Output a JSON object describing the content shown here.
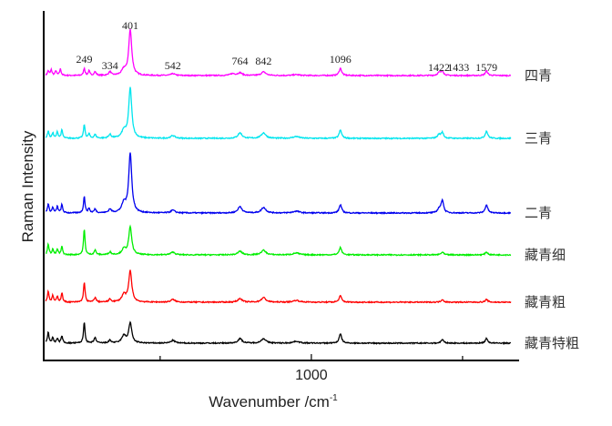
{
  "chart_data": {
    "type": "line",
    "title": "",
    "xlabel": "Wavenumber /cm",
    "xlabel_superscript": "-1",
    "ylabel": "Raman Intensity",
    "xlim": [
      115,
      1687
    ],
    "ylim": [
      0,
      384
    ],
    "x_ticks": [
      500,
      1000,
      1500
    ],
    "x_tick_labels": [
      "",
      "1000",
      ""
    ],
    "grid": false,
    "peak_labels": [
      {
        "x": 249,
        "text": "249",
        "y": 327
      },
      {
        "x": 334,
        "text": "334",
        "y": 320
      },
      {
        "x": 401,
        "text": "401",
        "y": 364
      },
      {
        "x": 542,
        "text": "542",
        "y": 320
      },
      {
        "x": 764,
        "text": "764",
        "y": 325
      },
      {
        "x": 842,
        "text": "842",
        "y": 325
      },
      {
        "x": 1096,
        "text": "1096",
        "y": 327
      },
      {
        "x": 1422,
        "text": "1422",
        "y": 318
      },
      {
        "x": 1486,
        "text": "1433",
        "y": 318
      },
      {
        "x": 1579,
        "text": "1579",
        "y": 318
      }
    ],
    "series": [
      {
        "name": "四青",
        "color": "#ff00ff",
        "offset": 313,
        "peaks": [
          [
            130,
            5,
            3
          ],
          [
            140,
            6,
            3
          ],
          [
            155,
            5,
            3
          ],
          [
            170,
            7,
            3
          ],
          [
            249,
            8,
            3
          ],
          [
            265,
            5,
            3
          ],
          [
            285,
            4,
            4
          ],
          [
            334,
            4,
            5
          ],
          [
            380,
            6,
            8
          ],
          [
            401,
            50,
            6
          ],
          [
            542,
            2,
            8
          ],
          [
            740,
            2,
            10
          ],
          [
            764,
            3,
            8
          ],
          [
            842,
            4,
            9
          ],
          [
            950,
            1,
            12
          ],
          [
            1096,
            8,
            5
          ],
          [
            1422,
            3,
            6
          ],
          [
            1433,
            5,
            5
          ],
          [
            1579,
            5,
            5
          ]
        ]
      },
      {
        "name": "三青",
        "color": "#00e5ee",
        "offset": 244,
        "peaks": [
          [
            130,
            8,
            3
          ],
          [
            145,
            6,
            3
          ],
          [
            160,
            7,
            3
          ],
          [
            175,
            9,
            3
          ],
          [
            249,
            15,
            3
          ],
          [
            265,
            5,
            3
          ],
          [
            285,
            4,
            4
          ],
          [
            334,
            4,
            5
          ],
          [
            380,
            8,
            8
          ],
          [
            401,
            55,
            6
          ],
          [
            542,
            3,
            8
          ],
          [
            764,
            6,
            8
          ],
          [
            842,
            6,
            9
          ],
          [
            950,
            2,
            12
          ],
          [
            1096,
            9,
            5
          ],
          [
            1422,
            4,
            6
          ],
          [
            1433,
            6,
            5
          ],
          [
            1579,
            8,
            5
          ]
        ]
      },
      {
        "name": "二青",
        "color": "#0000ee",
        "offset": 162,
        "peaks": [
          [
            130,
            10,
            3
          ],
          [
            145,
            6,
            3
          ],
          [
            160,
            7,
            3
          ],
          [
            175,
            9,
            3
          ],
          [
            249,
            18,
            3
          ],
          [
            265,
            5,
            3
          ],
          [
            285,
            4,
            4
          ],
          [
            334,
            4,
            5
          ],
          [
            380,
            10,
            8
          ],
          [
            401,
            65,
            6
          ],
          [
            542,
            3,
            8
          ],
          [
            764,
            7,
            8
          ],
          [
            842,
            6,
            9
          ],
          [
            950,
            2,
            12
          ],
          [
            1096,
            9,
            5
          ],
          [
            1422,
            4,
            6
          ],
          [
            1433,
            14,
            5
          ],
          [
            1579,
            9,
            5
          ]
        ]
      },
      {
        "name": "藏青细",
        "color": "#00ee00",
        "offset": 116,
        "peaks": [
          [
            130,
            12,
            3
          ],
          [
            145,
            6,
            3
          ],
          [
            160,
            6,
            3
          ],
          [
            175,
            9,
            3
          ],
          [
            249,
            28,
            3
          ],
          [
            285,
            5,
            4
          ],
          [
            334,
            3,
            5
          ],
          [
            380,
            6,
            8
          ],
          [
            401,
            30,
            6
          ],
          [
            542,
            3,
            8
          ],
          [
            764,
            4,
            8
          ],
          [
            842,
            5,
            9
          ],
          [
            950,
            2,
            12
          ],
          [
            1096,
            8,
            5
          ],
          [
            1433,
            3,
            5
          ],
          [
            1579,
            3,
            5
          ]
        ]
      },
      {
        "name": "藏青粗",
        "color": "#ff0000",
        "offset": 64,
        "peaks": [
          [
            130,
            12,
            3
          ],
          [
            145,
            7,
            3
          ],
          [
            160,
            6,
            3
          ],
          [
            175,
            10,
            3
          ],
          [
            249,
            22,
            3
          ],
          [
            285,
            5,
            4
          ],
          [
            334,
            3,
            5
          ],
          [
            380,
            8,
            8
          ],
          [
            401,
            34,
            6
          ],
          [
            542,
            3,
            8
          ],
          [
            764,
            4,
            8
          ],
          [
            842,
            5,
            9
          ],
          [
            950,
            2,
            12
          ],
          [
            1096,
            7,
            5
          ],
          [
            1433,
            3,
            5
          ],
          [
            1579,
            3,
            5
          ]
        ]
      },
      {
        "name": "藏青特粗",
        "color": "#000000",
        "offset": 19,
        "peaks": [
          [
            130,
            12,
            3
          ],
          [
            145,
            6,
            3
          ],
          [
            160,
            5,
            3
          ],
          [
            175,
            8,
            3
          ],
          [
            249,
            23,
            3
          ],
          [
            285,
            6,
            4
          ],
          [
            334,
            3,
            5
          ],
          [
            380,
            8,
            8
          ],
          [
            401,
            22,
            6
          ],
          [
            542,
            3,
            8
          ],
          [
            764,
            5,
            8
          ],
          [
            842,
            5,
            9
          ],
          [
            950,
            2,
            12
          ],
          [
            1096,
            10,
            5
          ],
          [
            1433,
            4,
            5
          ],
          [
            1579,
            5,
            5
          ]
        ]
      }
    ]
  }
}
